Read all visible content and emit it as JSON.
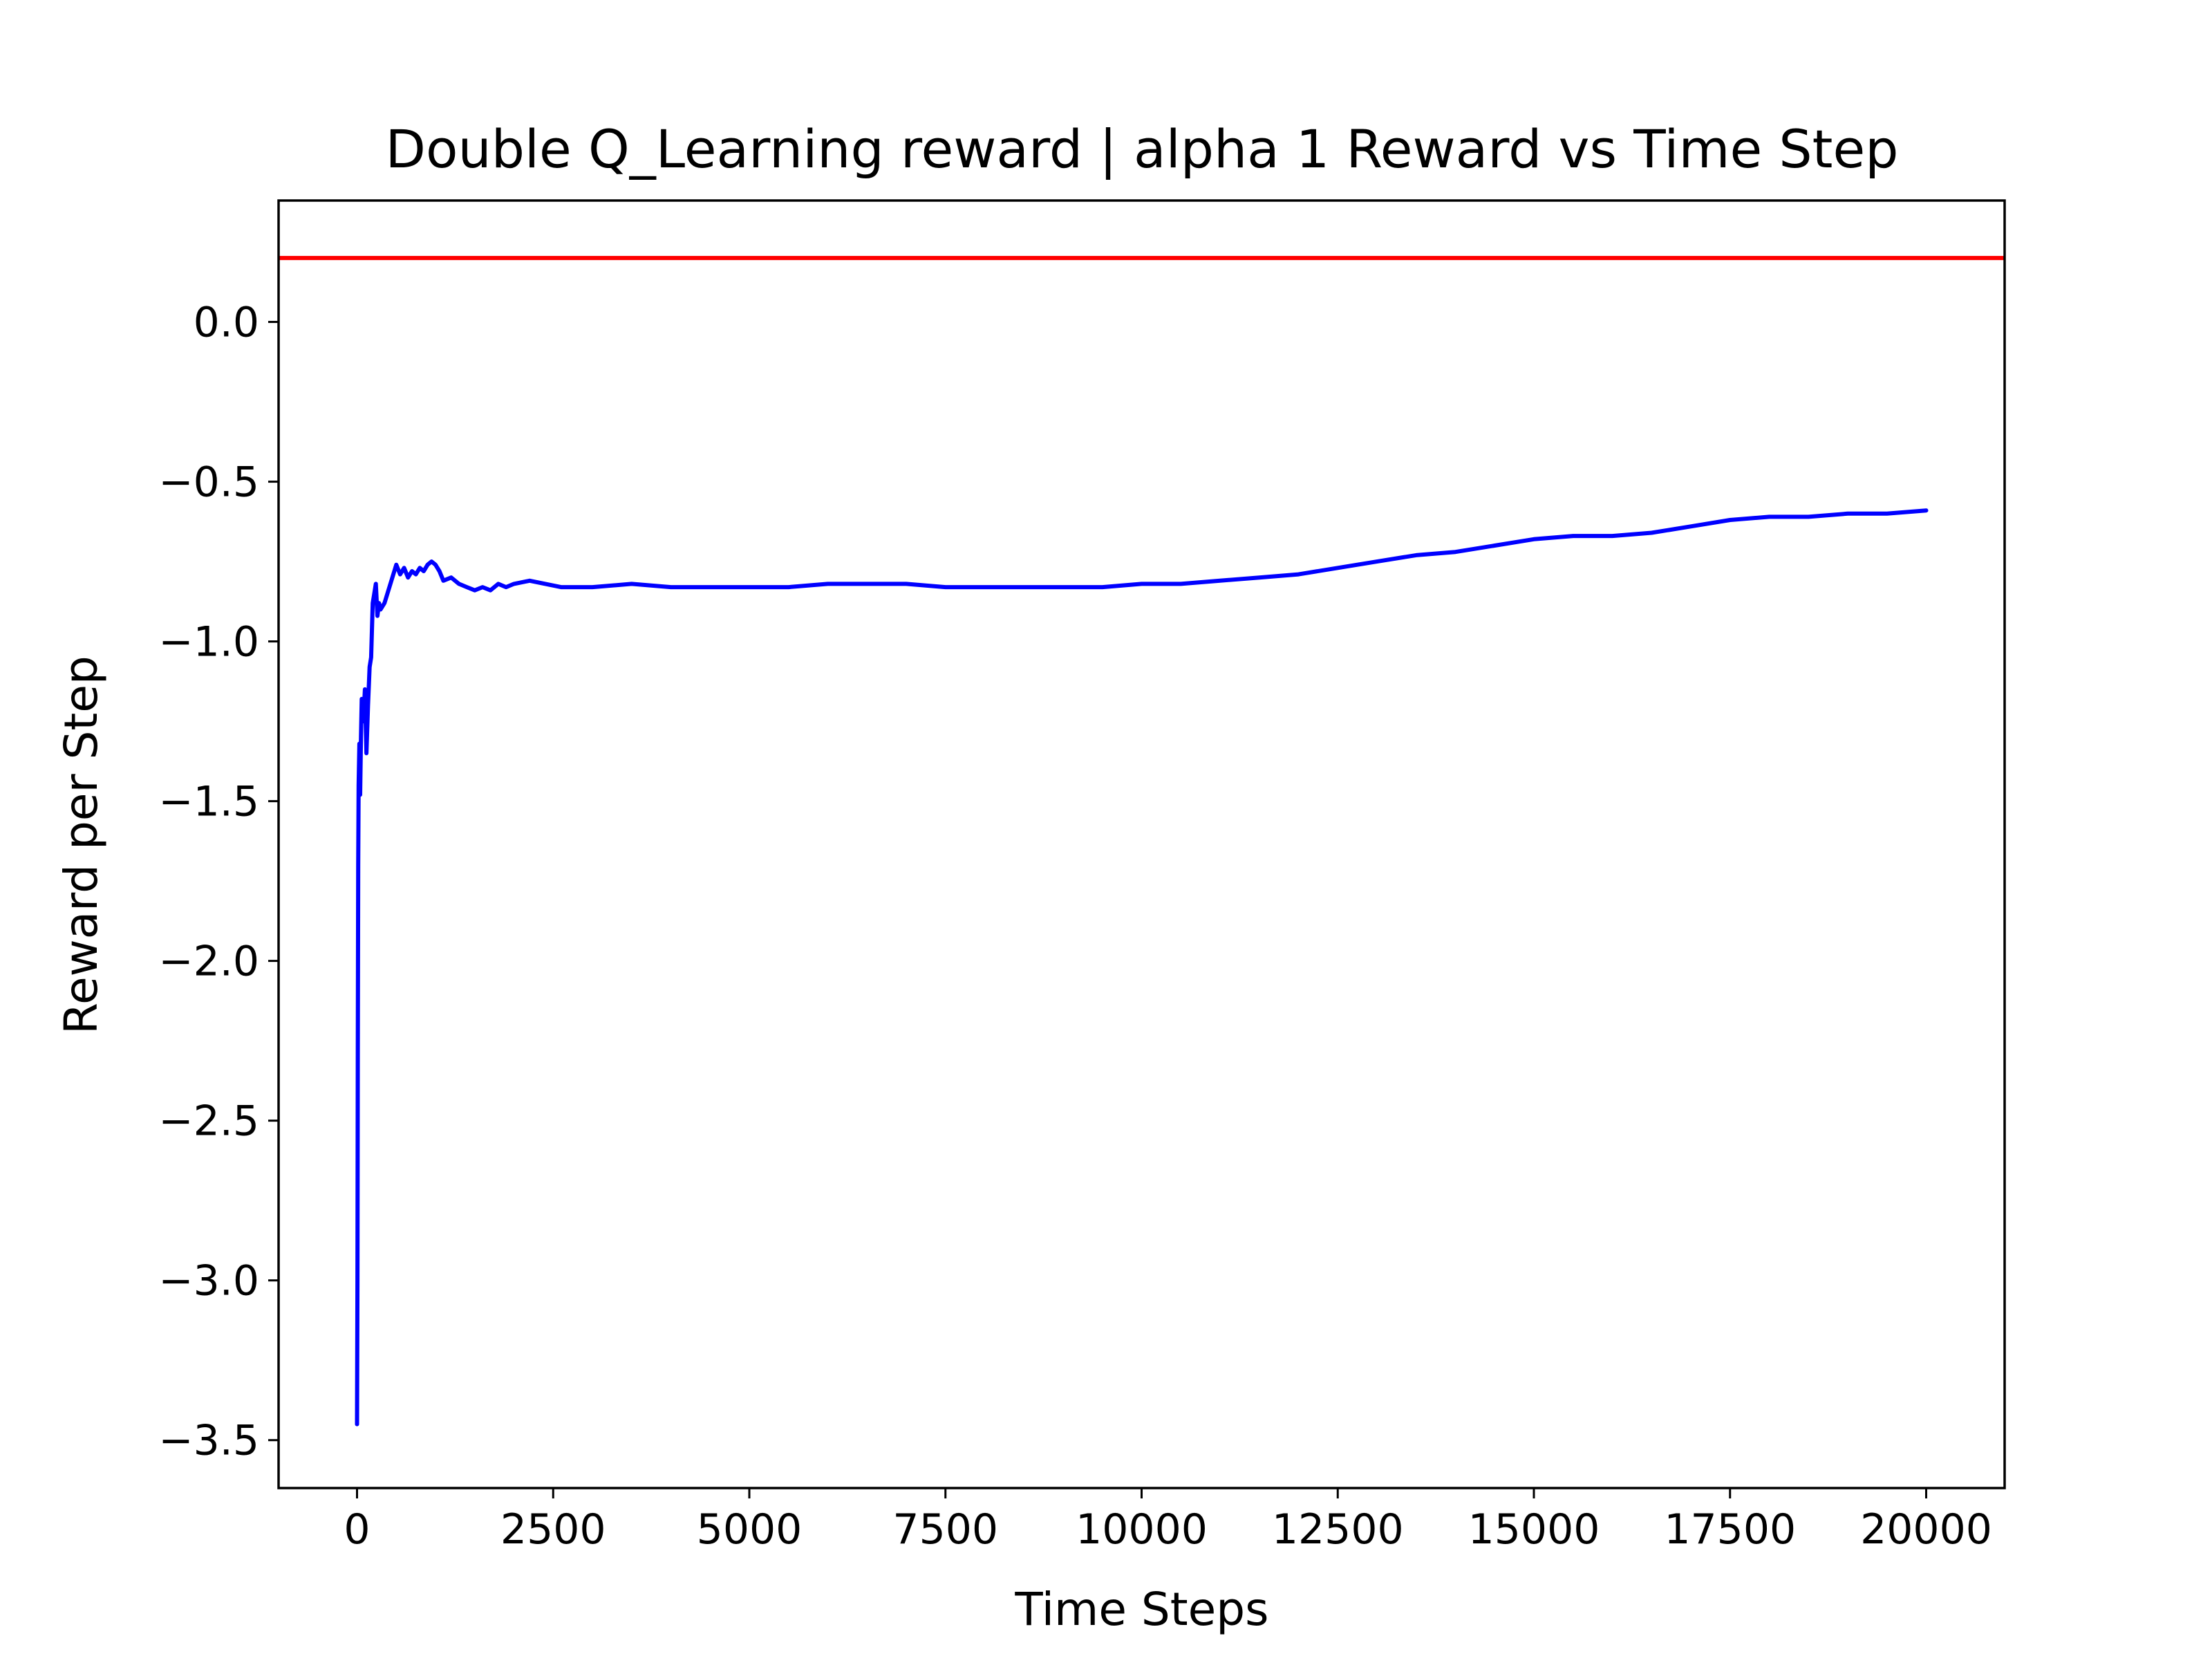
{
  "chart_data": {
    "type": "line",
    "title": "Double Q_Learning reward | alpha 1 Reward vs Time Step",
    "xlabel": "Time Steps",
    "ylabel": "Reward per Step",
    "xlim": [
      -1000,
      21000
    ],
    "ylim": [
      -3.65,
      0.38
    ],
    "x_ticks": [
      0,
      2500,
      5000,
      7500,
      10000,
      12500,
      15000,
      17500,
      20000
    ],
    "x_tick_labels": [
      "0",
      "2500",
      "5000",
      "7500",
      "10000",
      "12500",
      "15000",
      "17500",
      "20000"
    ],
    "y_ticks": [
      0.0,
      -0.5,
      -1.0,
      -1.5,
      -2.0,
      -2.5,
      -3.0,
      -3.5
    ],
    "y_tick_labels": [
      "0.0",
      "−0.5",
      "−1.0",
      "−1.5",
      "−2.0",
      "−2.5",
      "−3.0",
      "−3.5"
    ],
    "grid": false,
    "legend": "none",
    "series": [
      {
        "color": "#0000ff",
        "x": [
          0,
          5,
          10,
          15,
          20,
          30,
          40,
          50,
          60,
          80,
          100,
          120,
          140,
          160,
          180,
          200,
          220,
          240,
          260,
          280,
          300,
          350,
          400,
          450,
          500,
          550,
          600,
          650,
          700,
          750,
          800,
          850,
          900,
          950,
          1000,
          1050,
          1100,
          1200,
          1300,
          1400,
          1500,
          1600,
          1700,
          1800,
          1900,
          2000,
          2200,
          2400,
          2600,
          2800,
          3000,
          3500,
          4000,
          4500,
          5000,
          5500,
          6000,
          6500,
          7000,
          7500,
          8000,
          8500,
          9000,
          9500,
          10000,
          10500,
          11000,
          11500,
          12000,
          12500,
          13000,
          13500,
          14000,
          14500,
          15000,
          15500,
          16000,
          16500,
          17000,
          17500,
          18000,
          18500,
          19000,
          19500,
          20000
        ],
        "y": [
          -3.45,
          -3.0,
          -2.3,
          -1.7,
          -1.45,
          -1.32,
          -1.48,
          -1.3,
          -1.18,
          -1.25,
          -1.15,
          -1.35,
          -1.2,
          -1.08,
          -1.05,
          -0.88,
          -0.85,
          -0.82,
          -0.92,
          -0.88,
          -0.9,
          -0.88,
          -0.84,
          -0.8,
          -0.76,
          -0.79,
          -0.77,
          -0.8,
          -0.78,
          -0.79,
          -0.77,
          -0.78,
          -0.76,
          -0.75,
          -0.76,
          -0.78,
          -0.81,
          -0.8,
          -0.82,
          -0.83,
          -0.84,
          -0.83,
          -0.84,
          -0.82,
          -0.83,
          -0.82,
          -0.81,
          -0.82,
          -0.83,
          -0.83,
          -0.83,
          -0.82,
          -0.83,
          -0.83,
          -0.83,
          -0.83,
          -0.82,
          -0.82,
          -0.82,
          -0.83,
          -0.83,
          -0.83,
          -0.83,
          -0.83,
          -0.82,
          -0.82,
          -0.81,
          -0.8,
          -0.79,
          -0.77,
          -0.75,
          -0.73,
          -0.72,
          -0.7,
          -0.68,
          -0.67,
          -0.67,
          -0.66,
          -0.64,
          -0.62,
          -0.61,
          -0.61,
          -0.6,
          -0.6,
          -0.59
        ]
      }
    ],
    "reference_lines": [
      {
        "y": 0.2,
        "color": "#ff0000"
      }
    ]
  }
}
